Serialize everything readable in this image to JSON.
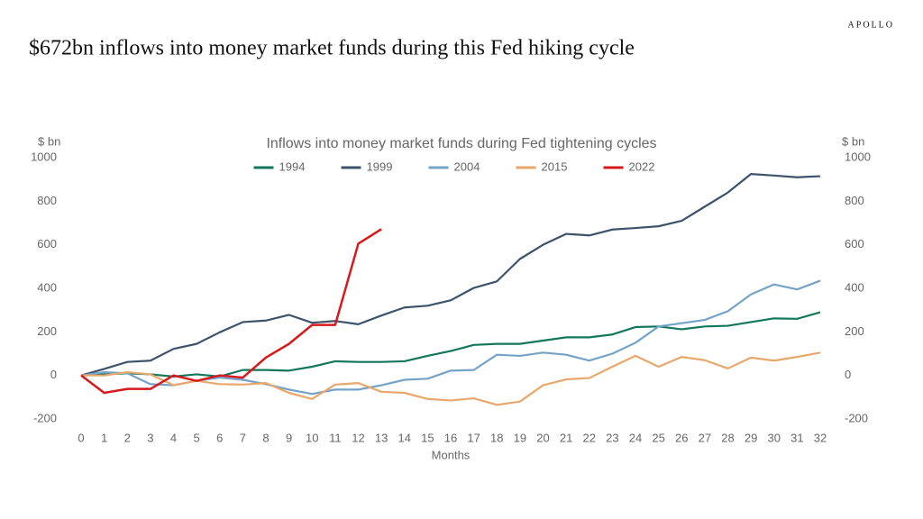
{
  "brand": "APOLLO",
  "chart_data": {
    "type": "line",
    "title": "$672bn inflows into money market funds during this Fed hiking cycle",
    "subtitle": "Inflows into money market funds during Fed tightening cycles",
    "ylabel": "$ bn",
    "y2label": "$ bn",
    "xlabel": "Months",
    "x": [
      0,
      1,
      2,
      3,
      4,
      5,
      6,
      7,
      8,
      9,
      10,
      11,
      12,
      13,
      14,
      15,
      16,
      17,
      18,
      19,
      20,
      21,
      22,
      23,
      24,
      25,
      26,
      27,
      28,
      29,
      30,
      31,
      32
    ],
    "xlim": [
      0,
      32
    ],
    "xticks": [
      0,
      1,
      2,
      3,
      4,
      5,
      6,
      7,
      8,
      9,
      10,
      11,
      12,
      13,
      14,
      15,
      16,
      17,
      18,
      19,
      20,
      21,
      22,
      23,
      24,
      25,
      26,
      27,
      28,
      29,
      30,
      31,
      32
    ],
    "ylim": [
      -200,
      1000
    ],
    "yticks": [
      -200,
      0,
      200,
      400,
      600,
      800,
      1000
    ],
    "y2lim": [
      -200,
      1000
    ],
    "y2ticks": [
      -200,
      0,
      200,
      400,
      600,
      800,
      1000
    ],
    "legend": "top",
    "series": [
      {
        "name": "1994",
        "color": "#12775c",
        "values": [
          0,
          5,
          10,
          5,
          -5,
          5,
          -5,
          25,
          25,
          22,
          40,
          65,
          62,
          62,
          65,
          90,
          112,
          140,
          145,
          145,
          160,
          175,
          175,
          188,
          222,
          225,
          212,
          225,
          228,
          245,
          262,
          260,
          290
        ]
      },
      {
        "name": "1999",
        "color": "#3c536c",
        "values": [
          0,
          30,
          62,
          68,
          122,
          145,
          198,
          245,
          252,
          278,
          242,
          250,
          235,
          275,
          312,
          320,
          345,
          402,
          432,
          535,
          600,
          650,
          643,
          670,
          677,
          685,
          710,
          775,
          840,
          925,
          918,
          910,
          915
        ]
      },
      {
        "name": "2004",
        "color": "#74a3c8",
        "values": [
          0,
          15,
          10,
          -40,
          -45,
          -25,
          -10,
          -20,
          -40,
          -65,
          -85,
          -65,
          -65,
          -45,
          -20,
          -15,
          22,
          25,
          95,
          90,
          105,
          95,
          68,
          100,
          150,
          225,
          240,
          255,
          295,
          372,
          418,
          395,
          435
        ]
      },
      {
        "name": "2015",
        "color": "#e8a76b",
        "values": [
          0,
          0,
          15,
          5,
          -45,
          -25,
          -40,
          -42,
          -35,
          -80,
          -108,
          -42,
          -35,
          -75,
          -80,
          -108,
          -115,
          -105,
          -135,
          -120,
          -45,
          -18,
          -12,
          40,
          90,
          40,
          85,
          70,
          32,
          82,
          68,
          85,
          105
        ]
      },
      {
        "name": "2022",
        "color": "#d7191c",
        "values": [
          0,
          -80,
          -62,
          -62,
          0,
          -25,
          0,
          -10,
          82,
          145,
          232,
          232,
          605,
          672,
          null,
          null,
          null,
          null,
          null,
          null,
          null,
          null,
          null,
          null,
          null,
          null,
          null,
          null,
          null,
          null,
          null,
          null,
          null
        ]
      }
    ]
  }
}
